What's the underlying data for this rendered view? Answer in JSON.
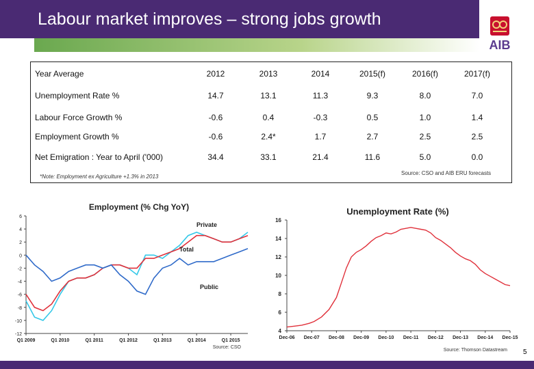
{
  "header": {
    "title": "Labour market improves – strong jobs growth",
    "logo_text": "AIB"
  },
  "table": {
    "header_label": "Year Average",
    "years": [
      "2012",
      "2013",
      "2014",
      "2015(f)",
      "2016(f)",
      "2017(f)"
    ],
    "rows": [
      {
        "label": "Unemployment Rate %",
        "values": [
          "14.7",
          "13.1",
          "11.3",
          "9.3",
          "8.0",
          "7.0"
        ]
      },
      {
        "label": "Labour Force Growth %",
        "values": [
          "-0.6",
          "0.4",
          "-0.3",
          "0.5",
          "1.0",
          "1.4"
        ]
      },
      {
        "label": "Employment Growth %",
        "values": [
          "-0.6",
          "2.4*",
          "1.7",
          "2.7",
          "2.5",
          "2.5"
        ]
      },
      {
        "label": "Net Emigration : Year to April ('000)",
        "values": [
          "34.4",
          "33.1",
          "21.4",
          "11.6",
          "5.0",
          "0.0"
        ]
      }
    ],
    "footnote": "*Note: Employment ex Agriculture +1.3% in 2013",
    "source": "Source: CSO and AIB ERU forecasts"
  },
  "page_number": "5",
  "chart_data": [
    {
      "type": "line",
      "title": "Employment (% Chg YoY)",
      "x": [
        "Q1 2009",
        "Q2 2009",
        "Q3 2009",
        "Q4 2009",
        "Q1 2010",
        "Q2 2010",
        "Q3 2010",
        "Q4 2010",
        "Q1 2011",
        "Q2 2011",
        "Q3 2011",
        "Q4 2011",
        "Q1 2012",
        "Q2 2012",
        "Q3 2012",
        "Q4 2012",
        "Q1 2013",
        "Q2 2013",
        "Q3 2013",
        "Q4 2013",
        "Q1 2014",
        "Q2 2014",
        "Q3 2014",
        "Q4 2014",
        "Q1 2015",
        "Q2 2015",
        "Q3 2015"
      ],
      "x_ticks": [
        "Q1 2009",
        "Q1 2010",
        "Q1 2011",
        "Q1 2012",
        "Q1 2013",
        "Q1 2014",
        "Q1 2015"
      ],
      "ylim": [
        -12,
        6
      ],
      "y_ticks": [
        6,
        4,
        2,
        0,
        -2,
        -4,
        -6,
        -8,
        -10,
        -12
      ],
      "series": [
        {
          "name": "Private",
          "color": "#33c8e8",
          "values": [
            -7.0,
            -9.5,
            -10.0,
            -8.5,
            -6.0,
            -4.0,
            -3.5,
            -3.5,
            -3.0,
            -2.0,
            -1.5,
            -1.5,
            -2.0,
            -3.0,
            0.0,
            0.0,
            -0.5,
            0.5,
            1.5,
            3.0,
            3.5,
            3.0,
            2.5,
            2.0,
            2.0,
            2.5,
            3.5
          ]
        },
        {
          "name": "Total",
          "color": "#e0303a",
          "values": [
            -6.0,
            -8.0,
            -8.5,
            -7.5,
            -5.5,
            -4.0,
            -3.5,
            -3.5,
            -3.0,
            -2.0,
            -1.5,
            -1.5,
            -2.0,
            -2.0,
            -0.5,
            -0.5,
            0.0,
            0.5,
            1.0,
            2.0,
            3.0,
            3.0,
            2.5,
            2.0,
            2.0,
            2.5,
            3.0
          ]
        },
        {
          "name": "Public",
          "color": "#2f6ac9",
          "values": [
            0.0,
            -1.5,
            -2.5,
            -4.0,
            -3.5,
            -2.5,
            -2.0,
            -1.5,
            -1.5,
            -2.0,
            -1.5,
            -3.0,
            -4.0,
            -5.5,
            -6.0,
            -3.5,
            -2.0,
            -1.5,
            -0.5,
            -1.5,
            -1.0,
            -1.0,
            -1.0,
            -0.5,
            0.0,
            0.5,
            1.0
          ]
        }
      ],
      "source": "Source: CSO"
    },
    {
      "type": "line",
      "title": "Unemployment Rate (%)",
      "x_ticks": [
        "Dec-06",
        "Dec-07",
        "Dec-08",
        "Dec-09",
        "Dec-10",
        "Dec-11",
        "Dec-12",
        "Dec-13",
        "Dec-14",
        "Dec-15"
      ],
      "ylim": [
        4,
        16
      ],
      "y_ticks": [
        16,
        14,
        12,
        10,
        8,
        6,
        4
      ],
      "series": [
        {
          "name": "",
          "color": "#e0303a",
          "points": [
            [
              2006.9,
              4.4
            ],
            [
              2007.2,
              4.5
            ],
            [
              2007.5,
              4.6
            ],
            [
              2007.8,
              4.8
            ],
            [
              2008.0,
              5.0
            ],
            [
              2008.3,
              5.5
            ],
            [
              2008.6,
              6.3
            ],
            [
              2008.9,
              7.6
            ],
            [
              2009.1,
              9.2
            ],
            [
              2009.3,
              10.8
            ],
            [
              2009.5,
              12.0
            ],
            [
              2009.7,
              12.5
            ],
            [
              2009.9,
              12.8
            ],
            [
              2010.1,
              13.2
            ],
            [
              2010.3,
              13.7
            ],
            [
              2010.5,
              14.1
            ],
            [
              2010.7,
              14.3
            ],
            [
              2010.9,
              14.6
            ],
            [
              2011.1,
              14.5
            ],
            [
              2011.3,
              14.7
            ],
            [
              2011.5,
              15.0
            ],
            [
              2011.7,
              15.1
            ],
            [
              2011.9,
              15.2
            ],
            [
              2012.1,
              15.1
            ],
            [
              2012.3,
              15.0
            ],
            [
              2012.5,
              14.9
            ],
            [
              2012.7,
              14.6
            ],
            [
              2012.9,
              14.1
            ],
            [
              2013.1,
              13.8
            ],
            [
              2013.3,
              13.4
            ],
            [
              2013.5,
              13.0
            ],
            [
              2013.7,
              12.5
            ],
            [
              2013.9,
              12.1
            ],
            [
              2014.1,
              11.8
            ],
            [
              2014.3,
              11.6
            ],
            [
              2014.5,
              11.2
            ],
            [
              2014.7,
              10.6
            ],
            [
              2014.9,
              10.2
            ],
            [
              2015.1,
              9.9
            ],
            [
              2015.3,
              9.6
            ],
            [
              2015.5,
              9.3
            ],
            [
              2015.7,
              9.0
            ],
            [
              2015.9,
              8.9
            ]
          ]
        }
      ],
      "source": "Source: Thomson Datastream"
    }
  ]
}
